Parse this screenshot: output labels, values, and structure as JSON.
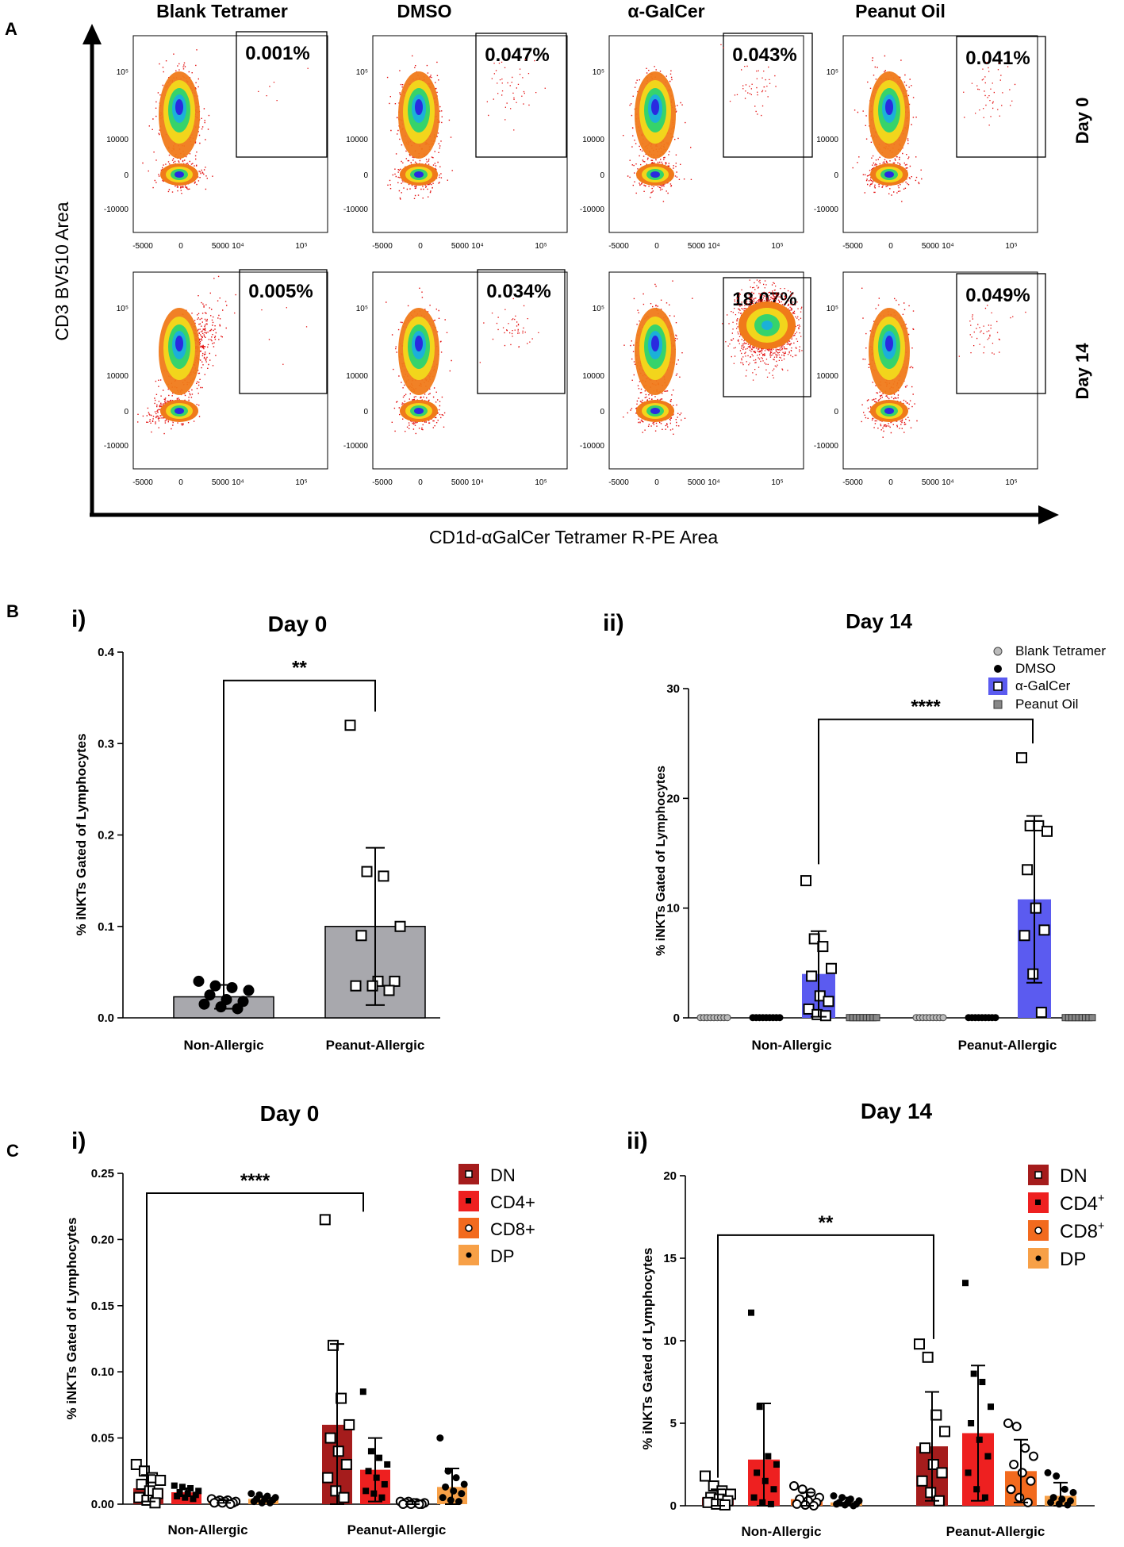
{
  "panel_letters": {
    "a": "A",
    "b": "B",
    "c": "C"
  },
  "panel_a": {
    "columns": [
      "Blank Tetramer",
      "DMSO",
      "α-GalCer",
      "Peanut Oil"
    ],
    "rows": [
      "Day 0",
      "Day 14"
    ],
    "y_axis_label": "CD3 BV510 Area",
    "x_axis_label": "CD1d-αGalCer Tetramer R-PE Area",
    "gate_percentages": [
      [
        "0.001%",
        "0.047%",
        "0.043%",
        "0.041%"
      ],
      [
        "0.005%",
        "0.034%",
        "18.07%",
        "0.049%"
      ]
    ],
    "y_ticks": [
      "10⁵",
      "10000",
      "0",
      "-10000"
    ],
    "x_ticks": [
      "-5000",
      "0",
      "5000",
      "10⁴",
      "10⁵"
    ]
  },
  "chart_data": [
    {
      "id": "Bi",
      "type": "bar",
      "roman": "i)",
      "title": "Day 0",
      "ylabel": "% iNKTs Gated of Lymphocytes",
      "ylim": [
        0,
        0.4
      ],
      "yticks": [
        "0.0",
        "0.1",
        "0.2",
        "0.3",
        "0.4"
      ],
      "categories": [
        "Non-Allergic",
        "Peanut-Allergic"
      ],
      "means": [
        0.023,
        0.1
      ],
      "sd": [
        0.013,
        0.086
      ],
      "points": [
        [
          0.04,
          0.035,
          0.033,
          0.03,
          0.025,
          0.02,
          0.018,
          0.015,
          0.012,
          0.01
        ],
        [
          0.32,
          0.16,
          0.155,
          0.1,
          0.09,
          0.04,
          0.04,
          0.035,
          0.035,
          0.03
        ]
      ],
      "significance": "**"
    },
    {
      "id": "Bii",
      "type": "bar",
      "roman": "ii)",
      "title": "Day 14",
      "ylabel": "% iNKTs Gated of Lymphocytes",
      "ylim": [
        0,
        30
      ],
      "yticks": [
        "0",
        "10",
        "20",
        "30"
      ],
      "categories": [
        "Non-Allergic",
        "Peanut-Allergic"
      ],
      "series": [
        {
          "name": "Blank  Tetramer",
          "means": [
            0.05,
            0.05
          ],
          "sd": [
            0,
            0
          ]
        },
        {
          "name": "DMSO",
          "means": [
            0.05,
            0.1
          ],
          "sd": [
            0,
            0
          ]
        },
        {
          "name": "α-GalCer",
          "means": [
            4.0,
            10.8
          ],
          "sd": [
            3.9,
            7.6
          ]
        },
        {
          "name": "Peanut Oil",
          "means": [
            0.05,
            0.1
          ],
          "sd": [
            0,
            0
          ]
        }
      ],
      "alpha_points": [
        [
          12.5,
          7.2,
          6.5,
          4.5,
          3.8,
          2.0,
          1.5,
          0.8,
          0.3,
          0.2
        ],
        [
          23.7,
          17.5,
          17.5,
          17.0,
          13.5,
          10.0,
          8.0,
          7.5,
          4.0,
          0.5
        ]
      ],
      "significance": "****"
    },
    {
      "id": "Ci",
      "type": "bar",
      "roman": "i)",
      "title": "Day 0",
      "ylabel": "% iNKTs Gated of Lymphocytes",
      "ylim": [
        0,
        0.25
      ],
      "yticks": [
        "0.00",
        "0.05",
        "0.10",
        "0.15",
        "0.20",
        "0.25"
      ],
      "categories": [
        "Non-Allergic",
        "Peanut-Allergic"
      ],
      "series": [
        {
          "name": "DN",
          "means": [
            0.012,
            0.06
          ],
          "sd": [
            0.01,
            0.061
          ]
        },
        {
          "name": "CD4+",
          "means": [
            0.009,
            0.026
          ],
          "sd": [
            0.003,
            0.024
          ]
        },
        {
          "name": "CD8+",
          "means": [
            0.002,
            0.001
          ],
          "sd": [
            0.001,
            0.001
          ]
        },
        {
          "name": "DP",
          "means": [
            0.004,
            0.013
          ],
          "sd": [
            0.002,
            0.014
          ]
        }
      ],
      "points": [
        [
          [
            0.03,
            0.025,
            0.02,
            0.018,
            0.015,
            0.01,
            0.008,
            0.005,
            0.003,
            0.001
          ],
          [
            0.215,
            0.12,
            0.08,
            0.06,
            0.05,
            0.04,
            0.03,
            0.02,
            0.01,
            0.005
          ]
        ],
        [
          [
            0.014,
            0.013,
            0.012,
            0.01,
            0.009,
            0.008,
            0.007,
            0.006,
            0.005,
            0.004
          ],
          [
            0.085,
            0.04,
            0.035,
            0.03,
            0.025,
            0.02,
            0.015,
            0.01,
            0.008,
            0.005
          ]
        ],
        [
          [
            0.004,
            0.003,
            0.003,
            0.002,
            0.002,
            0.002,
            0.001,
            0.001,
            0.001,
            0.0
          ],
          [
            0.002,
            0.002,
            0.001,
            0.001,
            0.001,
            0.001,
            0.0,
            0.0,
            0.0,
            0.0
          ]
        ],
        [
          [
            0.008,
            0.007,
            0.006,
            0.005,
            0.004,
            0.004,
            0.003,
            0.002,
            0.001,
            0.001
          ],
          [
            0.05,
            0.025,
            0.02,
            0.015,
            0.013,
            0.01,
            0.008,
            0.005,
            0.003,
            0.002
          ]
        ]
      ],
      "significance": "****"
    },
    {
      "id": "Cii",
      "type": "bar",
      "roman": "ii)",
      "title": "Day 14",
      "ylabel": "% iNKTs Gated of Lymphocytes",
      "ylim": [
        0,
        20
      ],
      "yticks": [
        "0",
        "5",
        "10",
        "15",
        "20"
      ],
      "categories": [
        "Non-Allergic",
        "Peanut-Allergic"
      ],
      "series": [
        {
          "name": "DN",
          "means": [
            0.5,
            3.6
          ],
          "sd": [
            0.5,
            3.3
          ]
        },
        {
          "name": "CD4",
          "sup": "+",
          "means": [
            2.8,
            4.4
          ],
          "sd": [
            3.4,
            4.1
          ]
        },
        {
          "name": "CD8",
          "sup": "+",
          "means": [
            0.4,
            2.1
          ],
          "sd": [
            0.4,
            1.9
          ]
        },
        {
          "name": "DP",
          "means": [
            0.2,
            0.6
          ],
          "sd": [
            0.3,
            0.8
          ]
        }
      ],
      "points": [
        [
          [
            1.8,
            1.2,
            0.9,
            0.7,
            0.5,
            0.4,
            0.3,
            0.2,
            0.1,
            0.05
          ],
          [
            9.8,
            9.0,
            5.5,
            4.5,
            3.5,
            2.5,
            2.0,
            1.5,
            0.8,
            0.3
          ]
        ],
        [
          [
            11.7,
            6.0,
            3.0,
            2.5,
            2.0,
            1.5,
            1.0,
            0.5,
            0.2,
            0.1
          ],
          [
            13.5,
            8.0,
            7.5,
            6.0,
            5.0,
            4.0,
            3.0,
            2.0,
            1.0,
            0.5
          ]
        ],
        [
          [
            1.2,
            1.0,
            0.8,
            0.5,
            0.4,
            0.3,
            0.2,
            0.1,
            0.05,
            0.0
          ],
          [
            5.0,
            4.8,
            3.5,
            3.0,
            2.5,
            2.0,
            1.5,
            1.0,
            0.5,
            0.2
          ]
        ],
        [
          [
            0.6,
            0.5,
            0.4,
            0.3,
            0.2,
            0.2,
            0.1,
            0.1,
            0.05,
            0.0
          ],
          [
            2.0,
            1.8,
            1.0,
            0.8,
            0.5,
            0.4,
            0.3,
            0.2,
            0.1,
            0.05
          ]
        ]
      ],
      "significance": "**"
    }
  ],
  "colors": {
    "gray_bar": "#a8a8ad",
    "alpha_bar": "#5b5bf0",
    "dn": "#a51c1c",
    "cd4": "#ee2020",
    "cd8": "#f26a1e",
    "dp": "#f7a047"
  }
}
